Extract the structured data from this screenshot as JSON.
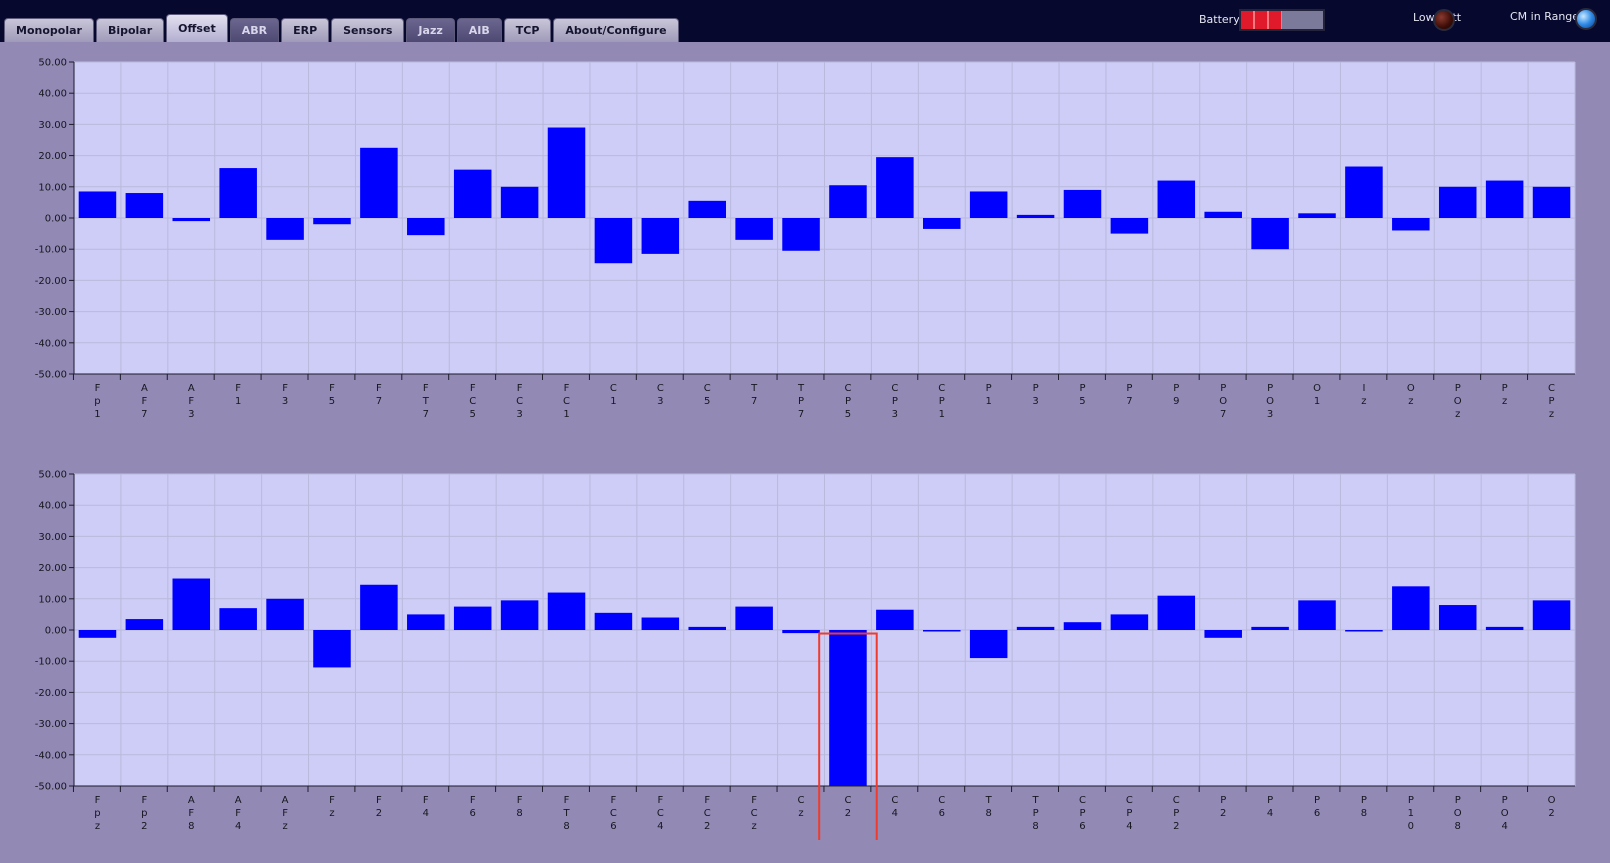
{
  "tabs": [
    {
      "label": "Monopolar",
      "state": "normal"
    },
    {
      "label": "Bipolar",
      "state": "normal"
    },
    {
      "label": "Offset",
      "state": "active"
    },
    {
      "label": "ABR",
      "state": "dim"
    },
    {
      "label": "ERP",
      "state": "normal"
    },
    {
      "label": "Sensors",
      "state": "normal"
    },
    {
      "label": "Jazz",
      "state": "dim"
    },
    {
      "label": "AIB",
      "state": "dim"
    },
    {
      "label": "TCP",
      "state": "normal"
    },
    {
      "label": "About/Configure",
      "state": "normal"
    }
  ],
  "status": {
    "battery_label": "Battery",
    "battery_level": 0.5,
    "low_batt_label": "Low Batt",
    "low_batt_on": false,
    "cm_in_range_label": "CM in Range",
    "cm_in_range_on": true
  },
  "colors": {
    "bar": "#0000ff",
    "plot_bg": "#cdcdf7",
    "highlight": "#f03a2c"
  },
  "chart_data": [
    {
      "type": "bar",
      "title": "",
      "xlabel": "",
      "ylabel": "",
      "ylim": [
        -50,
        50
      ],
      "yticks": [
        "50.00",
        "40.00",
        "30.00",
        "20.00",
        "10.00",
        "0.00",
        "-10.00",
        "-20.00",
        "-30.00",
        "-40.00",
        "-50.00"
      ],
      "grid": true,
      "categories": [
        "Fp1",
        "AF7",
        "AF3",
        "F1",
        "F3",
        "F5",
        "F7",
        "FT7",
        "FC5",
        "FC3",
        "FC1",
        "C1",
        "C3",
        "C5",
        "T7",
        "TP7",
        "CP5",
        "CP3",
        "CP1",
        "P1",
        "P3",
        "P5",
        "P7",
        "P9",
        "PO7",
        "PO3",
        "O1",
        "Iz",
        "Oz",
        "POz",
        "Pz",
        "CPz"
      ],
      "values": [
        8.5,
        8,
        -1,
        16,
        -7,
        -2,
        22.5,
        -5.5,
        15.5,
        10,
        29,
        -14.5,
        -11.5,
        5.5,
        -7,
        -10.5,
        10.5,
        19.5,
        -3.5,
        8.5,
        1,
        9,
        -5,
        12,
        2,
        -10,
        1.5,
        16.5,
        -4,
        10,
        12,
        10
      ],
      "highlight_category": null
    },
    {
      "type": "bar",
      "title": "",
      "xlabel": "",
      "ylabel": "",
      "ylim": [
        -50,
        50
      ],
      "yticks": [
        "50.00",
        "40.00",
        "30.00",
        "20.00",
        "10.00",
        "0.00",
        "-10.00",
        "-20.00",
        "-30.00",
        "-40.00",
        "-50.00"
      ],
      "grid": true,
      "categories": [
        "Fpz",
        "Fp2",
        "AF8",
        "AF4",
        "AFz",
        "Fz",
        "F2",
        "F4",
        "F6",
        "F8",
        "FT8",
        "FC6",
        "FC4",
        "FC2",
        "FCz",
        "Cz",
        "C2",
        "C4",
        "C6",
        "T8",
        "TP8",
        "CP6",
        "CP4",
        "CP2",
        "P2",
        "P4",
        "P6",
        "P8",
        "P10",
        "PO8",
        "PO4",
        "O2"
      ],
      "values": [
        -2.5,
        3.5,
        16.5,
        7,
        10,
        -12,
        14.5,
        5,
        7.5,
        9.5,
        12,
        5.5,
        4,
        1,
        7.5,
        -1,
        -50,
        6.5,
        -0.3,
        -9,
        1,
        2.5,
        5,
        11,
        -2.5,
        1,
        9.5,
        -0.3,
        14,
        8,
        1,
        9.5
      ],
      "highlight_category": "C2"
    }
  ]
}
